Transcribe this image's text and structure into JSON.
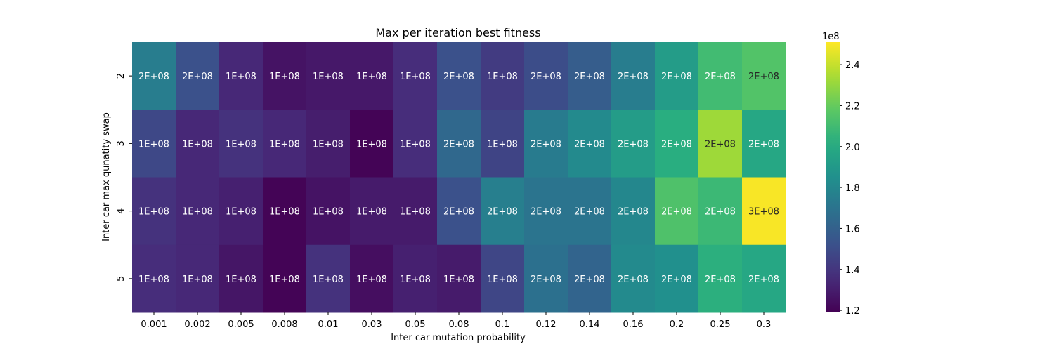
{
  "chart_data": {
    "type": "heatmap",
    "title": "Max per iteration best fitness",
    "xlabel": "Inter car mutation probability",
    "ylabel": "Inter car max qunatity swap",
    "x": [
      "0.001",
      "0.002",
      "0.005",
      "0.008",
      "0.01",
      "0.03",
      "0.05",
      "0.08",
      "0.1",
      "0.12",
      "0.14",
      "0.16",
      "0.2",
      "0.25",
      "0.3"
    ],
    "y": [
      "2",
      "3",
      "4",
      "5"
    ],
    "values": [
      [
        175000000.0,
        152000000.0,
        134000000.0,
        126000000.0,
        128000000.0,
        128000000.0,
        136000000.0,
        152000000.0,
        142000000.0,
        150000000.0,
        158000000.0,
        175000000.0,
        192000000.0,
        210000000.0,
        215000000.0
      ],
      [
        148000000.0,
        134000000.0,
        138000000.0,
        134000000.0,
        130000000.0,
        120000000.0,
        136000000.0,
        164000000.0,
        146000000.0,
        174000000.0,
        182000000.0,
        192000000.0,
        202000000.0,
        232000000.0,
        198000000.0
      ],
      [
        138000000.0,
        134000000.0,
        131000000.0,
        120000000.0,
        126000000.0,
        129000000.0,
        129000000.0,
        152000000.0,
        176000000.0,
        170000000.0,
        170000000.0,
        180000000.0,
        214000000.0,
        208000000.0,
        250000000.0
      ],
      [
        136000000.0,
        134000000.0,
        127000000.0,
        120000000.0,
        138000000.0,
        124000000.0,
        131000000.0,
        129000000.0,
        147000000.0,
        168000000.0,
        162000000.0,
        182000000.0,
        185000000.0,
        203000000.0,
        198000000.0
      ]
    ],
    "annotations": [
      [
        "2E+08",
        "2E+08",
        "1E+08",
        "1E+08",
        "1E+08",
        "1E+08",
        "1E+08",
        "2E+08",
        "1E+08",
        "2E+08",
        "2E+08",
        "2E+08",
        "2E+08",
        "2E+08",
        "2E+08"
      ],
      [
        "1E+08",
        "1E+08",
        "1E+08",
        "1E+08",
        "1E+08",
        "1E+08",
        "1E+08",
        "2E+08",
        "1E+08",
        "2E+08",
        "2E+08",
        "2E+08",
        "2E+08",
        "2E+08",
        "2E+08"
      ],
      [
        "1E+08",
        "1E+08",
        "1E+08",
        "1E+08",
        "1E+08",
        "1E+08",
        "1E+08",
        "2E+08",
        "2E+08",
        "2E+08",
        "2E+08",
        "2E+08",
        "2E+08",
        "2E+08",
        "3E+08"
      ],
      [
        "1E+08",
        "1E+08",
        "1E+08",
        "1E+08",
        "1E+08",
        "1E+08",
        "1E+08",
        "1E+08",
        "1E+08",
        "2E+08",
        "2E+08",
        "2E+08",
        "2E+08",
        "2E+08",
        "2E+08"
      ]
    ],
    "colormap": "viridis",
    "colorbar": {
      "range": [
        119000000.0,
        251000000.0
      ],
      "ticks": [
        1.2,
        1.4,
        1.6,
        1.8,
        2.0,
        2.2,
        2.4
      ],
      "tick_labels": [
        "1.2",
        "1.4",
        "1.6",
        "1.8",
        "2.0",
        "2.2",
        "2.4"
      ],
      "exponent_label": "1e8"
    }
  }
}
